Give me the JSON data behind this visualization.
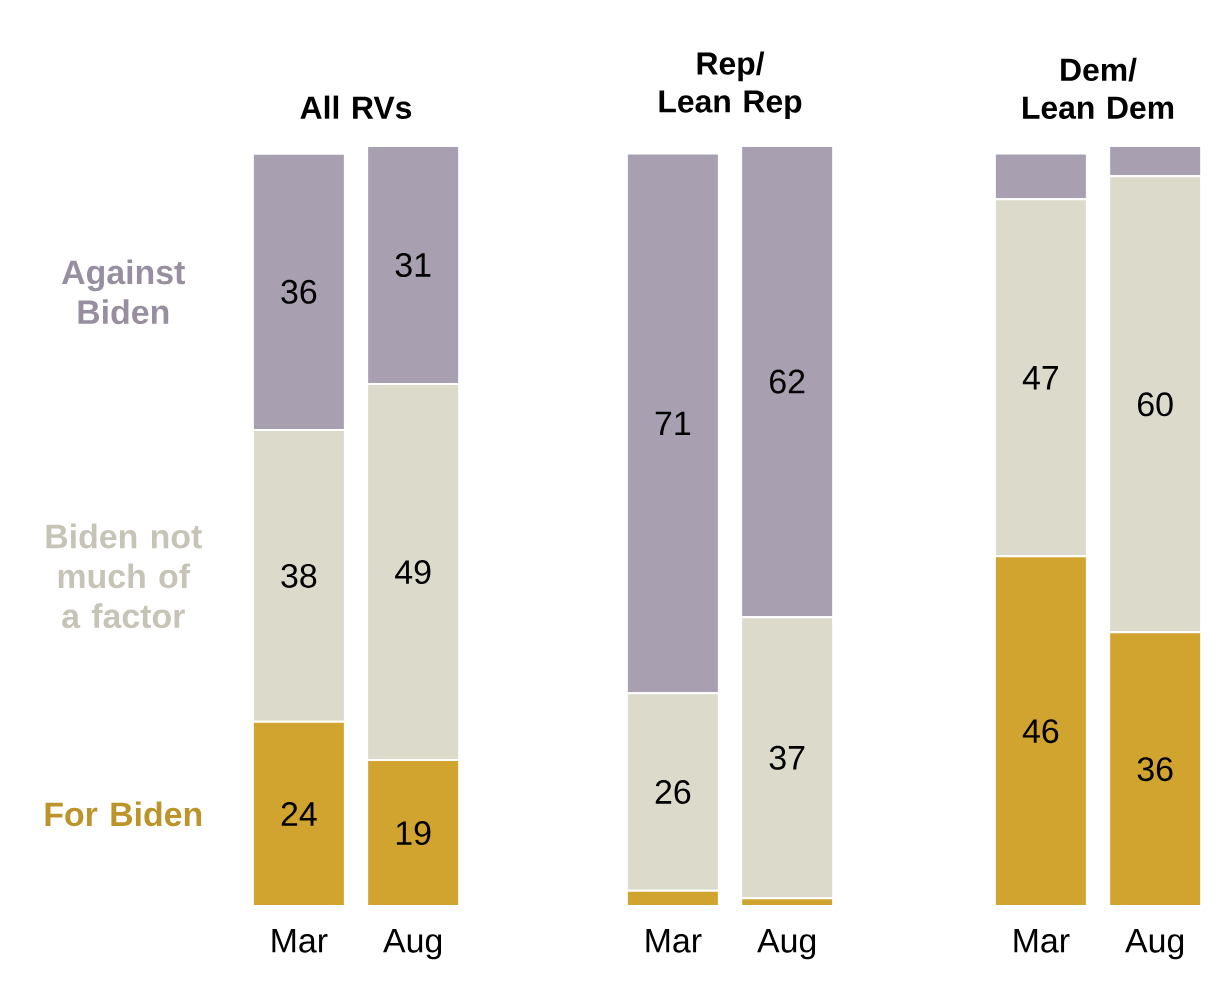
{
  "chart_data": [
    {
      "type": "bar",
      "title": "All RVs",
      "categories": [
        "Mar",
        "Aug"
      ],
      "stacked": true,
      "ylim": [
        0,
        99
      ],
      "series": [
        {
          "name": "For Biden",
          "color": "#d1a42f",
          "values": [
            24,
            19
          ],
          "value_labels": [
            "24",
            "19"
          ]
        },
        {
          "name": "Biden not much of a factor",
          "color": "#dcdacb",
          "values": [
            38,
            49
          ],
          "value_labels": [
            "38",
            "49"
          ]
        },
        {
          "name": "Against Biden",
          "color": "#a89fb1",
          "values": [
            36,
            31
          ],
          "value_labels": [
            "36",
            "31"
          ]
        }
      ]
    },
    {
      "type": "bar",
      "title": "Rep/ Lean Rep",
      "categories": [
        "Mar",
        "Aug"
      ],
      "stacked": true,
      "ylim": [
        0,
        100
      ],
      "series": [
        {
          "color": "#d1a42f",
          "values": [
            2,
            1
          ],
          "value_labels": [
            null,
            null
          ]
        },
        {
          "color": "#dcdacb",
          "values": [
            26,
            37
          ],
          "value_labels": [
            "26",
            "37"
          ]
        },
        {
          "color": "#a89fb1",
          "values": [
            71,
            62
          ],
          "value_labels": [
            "71",
            "62"
          ]
        }
      ]
    },
    {
      "type": "bar",
      "title": "Dem/ Lean Dem",
      "categories": [
        "Mar",
        "Aug"
      ],
      "stacked": true,
      "ylim": [
        0,
        100
      ],
      "series": [
        {
          "color": "#d1a42f",
          "values": [
            46,
            36
          ],
          "value_labels": [
            "46",
            "36"
          ]
        },
        {
          "color": "#dcdacb",
          "values": [
            47,
            60
          ],
          "value_labels": [
            "47",
            "60"
          ]
        },
        {
          "color": "#a89fb1",
          "values": [
            6,
            4
          ],
          "value_labels": [
            null,
            null
          ]
        }
      ]
    }
  ]
}
